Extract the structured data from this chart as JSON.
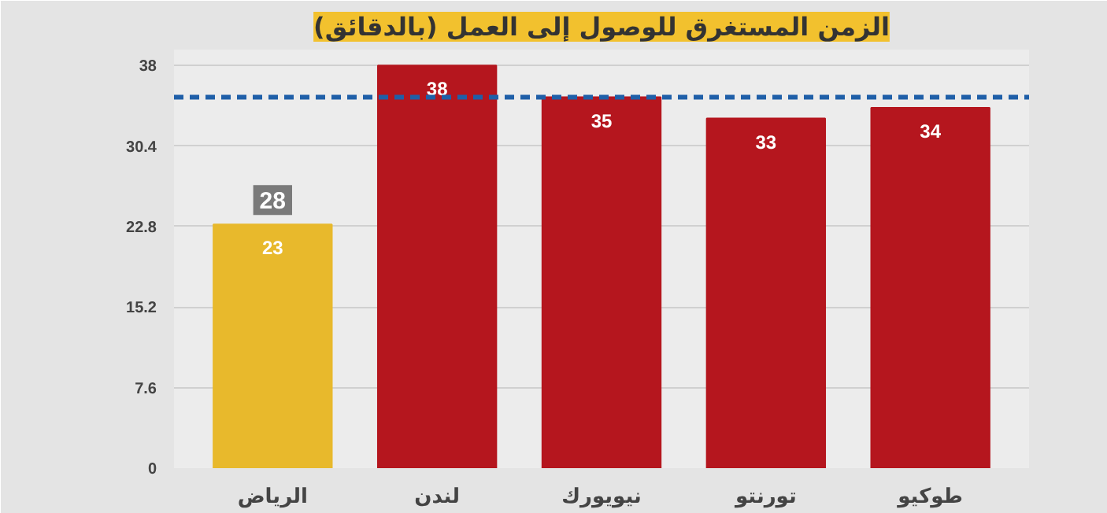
{
  "chart_data": {
    "type": "bar",
    "title": "الزمن المستغرق للوصول إلى العمل (بالدقائق)",
    "categories": [
      "الرياض",
      "لندن",
      "نيويورك",
      "تورنتو",
      "طوكيو"
    ],
    "values": [
      23,
      38,
      35,
      33,
      34
    ],
    "colors": [
      "#e8b92c",
      "#b5161e",
      "#b5161e",
      "#b5161e",
      "#b5161e"
    ],
    "ylim": [
      0,
      39.5
    ],
    "yticks": [
      0,
      7.6,
      15.2,
      22.8,
      30.4,
      38
    ],
    "grid": "y",
    "data_labels": true,
    "ref_lines": [
      {
        "axis": "y",
        "value": 35,
        "color": "#1f5fa8",
        "line_style": "dashed"
      }
    ],
    "annotations": [
      "28"
    ]
  }
}
